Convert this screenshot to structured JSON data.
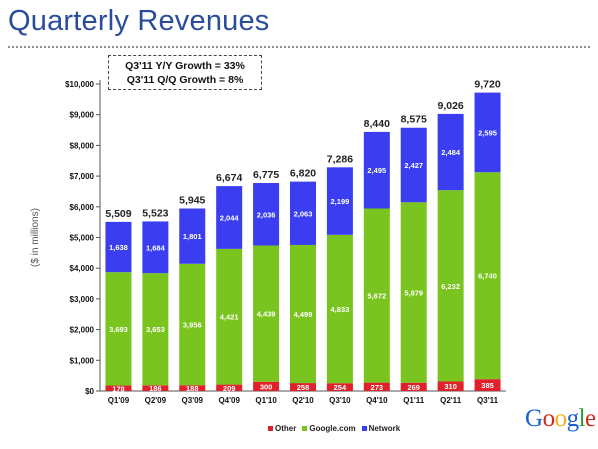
{
  "title": "Quarterly Revenues",
  "annotation": {
    "line1": "Q3'11 Y/Y Growth = 33%",
    "line2": "Q3'11 Q/Q Growth = 8%"
  },
  "logo": {
    "letters": [
      "G",
      "o",
      "o",
      "g",
      "l",
      "e"
    ],
    "colors": [
      "#1a5fd4",
      "#d42a1a",
      "#f2b21b",
      "#1a5fd4",
      "#2a9d3a",
      "#d42a1a"
    ]
  },
  "chart_data": {
    "type": "bar",
    "stacked": true,
    "ylabel": "($ in millions)",
    "ylim": [
      0,
      10000
    ],
    "yticks": [
      0,
      1000,
      2000,
      3000,
      4000,
      5000,
      6000,
      7000,
      8000,
      9000,
      10000
    ],
    "ytick_labels": [
      "$0",
      "$1,000",
      "$2,000",
      "$3,000",
      "$4,000",
      "$5,000",
      "$6,000",
      "$7,000",
      "$8,000",
      "$9,000",
      "$10,000"
    ],
    "categories": [
      "Q1'09",
      "Q2'09",
      "Q3'09",
      "Q4'09",
      "Q1'10",
      "Q2'10",
      "Q3'10",
      "Q4'10",
      "Q1'11",
      "Q2'11",
      "Q3'11"
    ],
    "series": [
      {
        "name": "Other",
        "color": "#e0202a",
        "values": [
          178,
          186,
          188,
          209,
          300,
          258,
          254,
          273,
          269,
          310,
          385
        ]
      },
      {
        "name": "Google.com",
        "color": "#7ac41f",
        "values": [
          3693,
          3653,
          3956,
          4421,
          4439,
          4499,
          4833,
          5672,
          5879,
          6232,
          6740
        ]
      },
      {
        "name": "Network",
        "color": "#3a3ef0",
        "values": [
          1638,
          1684,
          1801,
          2044,
          2036,
          2063,
          2199,
          2495,
          2427,
          2484,
          2595
        ]
      }
    ],
    "totals": [
      "5,509",
      "5,523",
      "5,945",
      "6,674",
      "6,775",
      "6,820",
      "7,286",
      "8,440",
      "8,575",
      "9,026",
      "9,720"
    ],
    "legend_position": "bottom-center",
    "grid": false
  }
}
